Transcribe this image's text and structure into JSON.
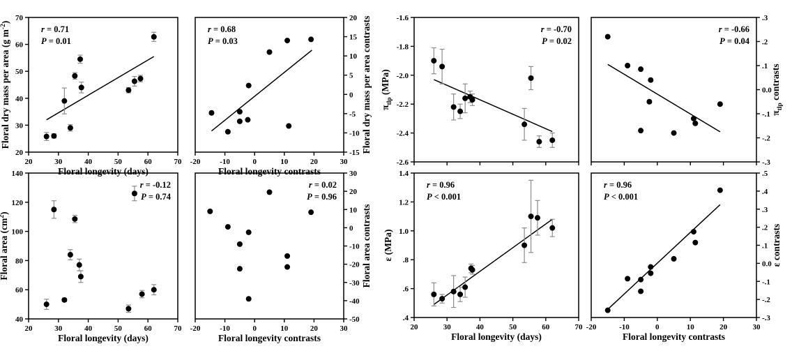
{
  "figure": {
    "background": "#ffffff",
    "point_color": "#000000",
    "error_bar_color": "#8c8c8c",
    "line_color": "#000000"
  },
  "chart_data": [
    {
      "id": "floral-dry-mass-vs-longevity",
      "type": "scatter",
      "annotation": {
        "pos": "top-left",
        "lines": [
          {
            "var": "r",
            "eq": " = 0.71"
          },
          {
            "var": "P",
            "eq": " = 0.01"
          }
        ]
      },
      "xlabel": "Floral longevity (days)",
      "ylabel_parts": [
        {
          "t": "Floral dry mass per area (g m"
        },
        {
          "t": "-2",
          "sup": true
        },
        {
          "t": ")"
        }
      ],
      "xlim": [
        20,
        70
      ],
      "ylim": [
        20,
        70
      ],
      "xticks": [
        {
          "v": 20,
          "label": "20"
        },
        {
          "v": 30,
          "label": "30"
        },
        {
          "v": 40,
          "label": "40"
        },
        {
          "v": 50,
          "label": "50"
        },
        {
          "v": 60,
          "label": "60"
        },
        {
          "v": 70,
          "label": "70"
        }
      ],
      "yticks": [
        {
          "v": 20,
          "label": "20"
        },
        {
          "v": 30,
          "label": "30"
        },
        {
          "v": 40,
          "label": "40"
        },
        {
          "v": 50,
          "label": "50"
        },
        {
          "v": 60,
          "label": "60"
        },
        {
          "v": 70,
          "label": "70"
        }
      ],
      "regression_line": {
        "x1": 26,
        "y1": 32,
        "x2": 62,
        "y2": 55.5
      },
      "points": [
        {
          "x": 26,
          "y": 25.8,
          "err": 1.5
        },
        {
          "x": 28.5,
          "y": 26,
          "err": 0.8
        },
        {
          "x": 32,
          "y": 39,
          "err": 4.8
        },
        {
          "x": 34,
          "y": 29,
          "err": 1.2
        },
        {
          "x": 35.5,
          "y": 48.3,
          "err": 1.2
        },
        {
          "x": 37.3,
          "y": 54.5,
          "err": 1.5
        },
        {
          "x": 37.7,
          "y": 44,
          "err": 2.0
        },
        {
          "x": 53.5,
          "y": 43,
          "err": 1.0
        },
        {
          "x": 55.5,
          "y": 46.3,
          "err": 1.8
        },
        {
          "x": 57.5,
          "y": 47.3,
          "err": 1.2
        },
        {
          "x": 62,
          "y": 62.8,
          "err": 1.7
        }
      ]
    },
    {
      "id": "floral-dry-mass-contrasts-vs-longevity-contrasts",
      "type": "scatter",
      "annotation": {
        "pos": "top-left",
        "lines": [
          {
            "var": "r",
            "eq": " = 0.68"
          },
          {
            "var": "P",
            "eq": " = 0.03"
          }
        ]
      },
      "xlabel": "Floral longevity contrasts",
      "ylabel_parts": [
        {
          "t": "Floral dry mass per area contrasts"
        }
      ],
      "ylabel_side": "right",
      "xlim": [
        -20,
        30
      ],
      "ylim": [
        -15,
        20
      ],
      "xticks": [
        {
          "v": -20,
          "label": "-20"
        },
        {
          "v": -10,
          "label": "-10"
        },
        {
          "v": 0,
          "label": "0"
        },
        {
          "v": 10,
          "label": "10"
        },
        {
          "v": 20,
          "label": "20"
        },
        {
          "v": 30,
          "label": "30"
        }
      ],
      "yticks": [
        {
          "v": -15,
          "label": "-15"
        },
        {
          "v": -10,
          "label": "-10"
        },
        {
          "v": -5,
          "label": "-5"
        },
        {
          "v": 0,
          "label": "0"
        },
        {
          "v": 5,
          "label": "5"
        },
        {
          "v": 10,
          "label": "10"
        },
        {
          "v": 15,
          "label": "15"
        },
        {
          "v": 20,
          "label": "20"
        }
      ],
      "regression_line": {
        "x1": -14.5,
        "y1": -9.5,
        "x2": 19.3,
        "y2": 11.5
      },
      "points": [
        {
          "x": -14.5,
          "y": -4.8
        },
        {
          "x": -9,
          "y": -9.7
        },
        {
          "x": -5,
          "y": -4.5
        },
        {
          "x": -5,
          "y": -7
        },
        {
          "x": -2.3,
          "y": -6.6
        },
        {
          "x": -2,
          "y": 2.3
        },
        {
          "x": 5,
          "y": 11
        },
        {
          "x": 11,
          "y": 14
        },
        {
          "x": 11.5,
          "y": -8.2
        },
        {
          "x": 19,
          "y": 14.3
        }
      ]
    },
    {
      "id": "floral-area-vs-longevity",
      "type": "scatter",
      "annotation": {
        "pos": "top-right",
        "lines": [
          {
            "var": "r",
            "eq": " = -0.12"
          },
          {
            "var": "P",
            "eq": " = 0.74"
          }
        ]
      },
      "xlabel": "Floral longevity (days)",
      "ylabel_parts": [
        {
          "t": "Floral area (cm"
        },
        {
          "t": "2",
          "sup": true
        },
        {
          "t": ")"
        }
      ],
      "xlim": [
        20,
        70
      ],
      "ylim": [
        40,
        140
      ],
      "xticks": [
        {
          "v": 20,
          "label": "20"
        },
        {
          "v": 30,
          "label": "30"
        },
        {
          "v": 40,
          "label": "40"
        },
        {
          "v": 50,
          "label": "50"
        },
        {
          "v": 60,
          "label": "60"
        },
        {
          "v": 70,
          "label": "70"
        }
      ],
      "yticks": [
        {
          "v": 40,
          "label": "40"
        },
        {
          "v": 60,
          "label": "60"
        },
        {
          "v": 80,
          "label": "80"
        },
        {
          "v": 100,
          "label": "100"
        },
        {
          "v": 120,
          "label": "120"
        },
        {
          "v": 140,
          "label": "140"
        }
      ],
      "regression_line": null,
      "points": [
        {
          "x": 26,
          "y": 50,
          "err": 3.5
        },
        {
          "x": 28.5,
          "y": 115,
          "err": 6
        },
        {
          "x": 32,
          "y": 53,
          "err": 1.2
        },
        {
          "x": 34,
          "y": 84,
          "err": 3.5
        },
        {
          "x": 35.5,
          "y": 108.5,
          "err": 2.5
        },
        {
          "x": 37,
          "y": 77,
          "err": 4
        },
        {
          "x": 37.5,
          "y": 69,
          "err": 4
        },
        {
          "x": 53.5,
          "y": 47,
          "err": 2.5
        },
        {
          "x": 55.5,
          "y": 126,
          "err": 5
        },
        {
          "x": 58,
          "y": 57,
          "err": 2.5
        },
        {
          "x": 62,
          "y": 60,
          "err": 3.5
        }
      ]
    },
    {
      "id": "floral-area-contrasts-vs-longevity-contrasts",
      "type": "scatter",
      "annotation": {
        "pos": "top-right",
        "lines": [
          {
            "var": "r",
            "eq": " = 0.02"
          },
          {
            "var": "P",
            "eq": " = 0.96"
          }
        ]
      },
      "xlabel": "Floral longevity contrasts",
      "ylabel_parts": [
        {
          "t": "Floral area contrasts"
        }
      ],
      "ylabel_side": "right",
      "xlim": [
        -20,
        30
      ],
      "ylim": [
        -50,
        30
      ],
      "xticks": [
        {
          "v": -20,
          "label": "-20"
        },
        {
          "v": -10,
          "label": "-10"
        },
        {
          "v": 0,
          "label": "0"
        },
        {
          "v": 10,
          "label": "10"
        },
        {
          "v": 20,
          "label": "20"
        },
        {
          "v": 30,
          "label": "30"
        }
      ],
      "yticks": [
        {
          "v": -50,
          "label": "-50"
        },
        {
          "v": -40,
          "label": "-40"
        },
        {
          "v": -30,
          "label": "-30"
        },
        {
          "v": -20,
          "label": "-20"
        },
        {
          "v": -10,
          "label": "-10"
        },
        {
          "v": 0,
          "label": "0"
        },
        {
          "v": 10,
          "label": "10"
        },
        {
          "v": 20,
          "label": "20"
        },
        {
          "v": 30,
          "label": "30"
        }
      ],
      "regression_line": null,
      "points": [
        {
          "x": -15,
          "y": 9
        },
        {
          "x": -9,
          "y": 0.5
        },
        {
          "x": -5,
          "y": -9
        },
        {
          "x": -5,
          "y": -22.5
        },
        {
          "x": -2,
          "y": -2.5
        },
        {
          "x": -2,
          "y": -39
        },
        {
          "x": 5,
          "y": 19.5
        },
        {
          "x": 11,
          "y": -15.5
        },
        {
          "x": 11,
          "y": -21.5
        },
        {
          "x": 19,
          "y": 8.5
        }
      ]
    },
    {
      "id": "pi-tlp-vs-longevity",
      "type": "scatter",
      "annotation": {
        "pos": "top-right",
        "lines": [
          {
            "var": "r",
            "eq": " = -0.70"
          },
          {
            "var": "P",
            "eq": " = 0.02"
          }
        ]
      },
      "xlabel": "",
      "hide_x_tick_labels": true,
      "ylabel_parts": [
        {
          "t": "π"
        },
        {
          "t": "tlp",
          "sub": true
        },
        {
          "t": " (MPa)"
        }
      ],
      "xlim": [
        20,
        70
      ],
      "ylim": [
        -2.6,
        -1.6
      ],
      "xticks": [
        {
          "v": 20,
          "label": "20"
        },
        {
          "v": 30,
          "label": "30"
        },
        {
          "v": 40,
          "label": "40"
        },
        {
          "v": 50,
          "label": "50"
        },
        {
          "v": 60,
          "label": "60"
        },
        {
          "v": 70,
          "label": "70"
        }
      ],
      "yticks": [
        {
          "v": -2.6,
          "label": "-2.6"
        },
        {
          "v": -2.4,
          "label": "-2.4"
        },
        {
          "v": -2.2,
          "label": "-2.2"
        },
        {
          "v": -2.0,
          "label": "-2.0"
        },
        {
          "v": -1.8,
          "label": "-1.8"
        },
        {
          "v": -1.6,
          "label": "-1.6"
        }
      ],
      "regression_line": {
        "x1": 26,
        "y1": -2.03,
        "x2": 62,
        "y2": -2.39
      },
      "points": [
        {
          "x": 26,
          "y": -1.9,
          "err": 0.09
        },
        {
          "x": 28.5,
          "y": -1.94,
          "err": 0.12
        },
        {
          "x": 32,
          "y": -2.22,
          "err": 0.09
        },
        {
          "x": 34,
          "y": -2.25,
          "err": 0.05
        },
        {
          "x": 35.5,
          "y": -2.16,
          "err": 0.1
        },
        {
          "x": 37,
          "y": -2.15,
          "err": 0.04
        },
        {
          "x": 37.7,
          "y": -2.17,
          "err": 0.04
        },
        {
          "x": 53.5,
          "y": -2.34,
          "err": 0.11
        },
        {
          "x": 55.5,
          "y": -2.02,
          "err": 0.08
        },
        {
          "x": 58,
          "y": -2.46,
          "err": 0.04
        },
        {
          "x": 62,
          "y": -2.45,
          "err": 0.05
        }
      ]
    },
    {
      "id": "pi-tlp-contrasts-vs-longevity-contrasts",
      "type": "scatter",
      "annotation": {
        "pos": "top-right",
        "lines": [
          {
            "var": "r",
            "eq": " = -0.66"
          },
          {
            "var": "P",
            "eq": " = 0.04"
          }
        ]
      },
      "xlabel": "",
      "hide_x_tick_labels": true,
      "ylabel_parts": [
        {
          "t": "π"
        },
        {
          "t": "tlp",
          "sub": true
        },
        {
          "t": " contrasts"
        }
      ],
      "ylabel_side": "right",
      "xlim": [
        -20,
        30
      ],
      "ylim": [
        -0.3,
        0.3
      ],
      "xticks": [
        {
          "v": -20,
          "label": "-20"
        },
        {
          "v": -10,
          "label": "-10"
        },
        {
          "v": 0,
          "label": "0"
        },
        {
          "v": 10,
          "label": "10"
        },
        {
          "v": 20,
          "label": "20"
        },
        {
          "v": 30,
          "label": "30"
        }
      ],
      "yticks": [
        {
          "v": -0.3,
          "label": "-.3"
        },
        {
          "v": -0.2,
          "label": "-.2"
        },
        {
          "v": -0.1,
          "label": "-.1"
        },
        {
          "v": 0,
          "label": "0.0"
        },
        {
          "v": 0.1,
          "label": ".1"
        },
        {
          "v": 0.2,
          "label": ".2"
        },
        {
          "v": 0.3,
          "label": ".3"
        }
      ],
      "regression_line": {
        "x1": -15,
        "y1": 0.105,
        "x2": 19,
        "y2": -0.175
      },
      "points": [
        {
          "x": -15,
          "y": 0.22
        },
        {
          "x": -9,
          "y": 0.1
        },
        {
          "x": -5,
          "y": 0.085
        },
        {
          "x": -5,
          "y": -0.17
        },
        {
          "x": -2,
          "y": 0.04
        },
        {
          "x": -2.4,
          "y": -0.05
        },
        {
          "x": 5,
          "y": -0.18
        },
        {
          "x": 11,
          "y": -0.12
        },
        {
          "x": 11.5,
          "y": -0.14
        },
        {
          "x": 19,
          "y": -0.06
        }
      ]
    },
    {
      "id": "epsilon-vs-longevity",
      "type": "scatter",
      "annotation": {
        "pos": "top-left",
        "lines": [
          {
            "var": "r",
            "eq": " = 0.96"
          },
          {
            "var": "P",
            "eq": " < 0.001"
          }
        ]
      },
      "xlabel": "Floral longevity (days)",
      "ylabel_parts": [
        {
          "t": "ε (MPa)"
        }
      ],
      "xlim": [
        20,
        70
      ],
      "ylim": [
        0.4,
        1.4
      ],
      "xticks": [
        {
          "v": 20,
          "label": "20"
        },
        {
          "v": 30,
          "label": "30"
        },
        {
          "v": 40,
          "label": "40"
        },
        {
          "v": 50,
          "label": "50"
        },
        {
          "v": 60,
          "label": "60"
        },
        {
          "v": 70,
          "label": "70"
        }
      ],
      "yticks": [
        {
          "v": 0.4,
          "label": ".4"
        },
        {
          "v": 0.6,
          "label": ".6"
        },
        {
          "v": 0.8,
          "label": ".8"
        },
        {
          "v": 1.0,
          "label": "1.0"
        },
        {
          "v": 1.2,
          "label": "1.2"
        },
        {
          "v": 1.4,
          "label": "1.4"
        }
      ],
      "regression_line": {
        "x1": 26,
        "y1": 0.49,
        "x2": 62,
        "y2": 1.08
      },
      "points": [
        {
          "x": 26,
          "y": 0.56,
          "err": 0.08
        },
        {
          "x": 28.5,
          "y": 0.53,
          "err": 0.03
        },
        {
          "x": 32,
          "y": 0.58,
          "err": 0.11
        },
        {
          "x": 34,
          "y": 0.56,
          "err": 0.05
        },
        {
          "x": 35.5,
          "y": 0.61,
          "err": 0.07
        },
        {
          "x": 37.3,
          "y": 0.74,
          "err": 0.03
        },
        {
          "x": 37.7,
          "y": 0.73,
          "err": 0.03
        },
        {
          "x": 53.5,
          "y": 0.9,
          "err": 0.12
        },
        {
          "x": 55.5,
          "y": 1.1,
          "err": 0.25
        },
        {
          "x": 57.5,
          "y": 1.09,
          "err": 0.12
        },
        {
          "x": 62,
          "y": 1.02,
          "err": 0.06
        }
      ]
    },
    {
      "id": "epsilon-contrasts-vs-longevity-contrasts",
      "type": "scatter",
      "annotation": {
        "pos": "top-left",
        "lines": [
          {
            "var": "r",
            "eq": " = 0.96"
          },
          {
            "var": "P",
            "eq": " < 0.001"
          }
        ]
      },
      "xlabel": "Floral longevity contrasts",
      "ylabel_parts": [
        {
          "t": "ε contrasts"
        }
      ],
      "ylabel_side": "right",
      "xlim": [
        -20,
        30
      ],
      "ylim": [
        -0.3,
        0.5
      ],
      "xticks": [
        {
          "v": -20,
          "label": "-20"
        },
        {
          "v": -10,
          "label": "-10"
        },
        {
          "v": 0,
          "label": "0"
        },
        {
          "v": 10,
          "label": "10"
        },
        {
          "v": 20,
          "label": "20"
        },
        {
          "v": 30,
          "label": "30"
        }
      ],
      "yticks": [
        {
          "v": -0.3,
          "label": "-.3"
        },
        {
          "v": -0.2,
          "label": "-.2"
        },
        {
          "v": -0.1,
          "label": "-.1"
        },
        {
          "v": 0,
          "label": "0.0"
        },
        {
          "v": 0.1,
          "label": ".1"
        },
        {
          "v": 0.2,
          "label": ".2"
        },
        {
          "v": 0.3,
          "label": ".3"
        },
        {
          "v": 0.4,
          "label": ".4"
        },
        {
          "v": 0.5,
          "label": ".5"
        }
      ],
      "regression_line": {
        "x1": -15,
        "y1": -0.255,
        "x2": 19,
        "y2": 0.325
      },
      "points": [
        {
          "x": -15,
          "y": -0.26
        },
        {
          "x": -9,
          "y": -0.085
        },
        {
          "x": -5,
          "y": -0.09
        },
        {
          "x": -5,
          "y": -0.155
        },
        {
          "x": -2,
          "y": -0.02
        },
        {
          "x": -2,
          "y": -0.055
        },
        {
          "x": 5,
          "y": 0.025
        },
        {
          "x": 11,
          "y": 0.175
        },
        {
          "x": 11.5,
          "y": 0.115
        },
        {
          "x": 19,
          "y": 0.405
        }
      ]
    }
  ]
}
